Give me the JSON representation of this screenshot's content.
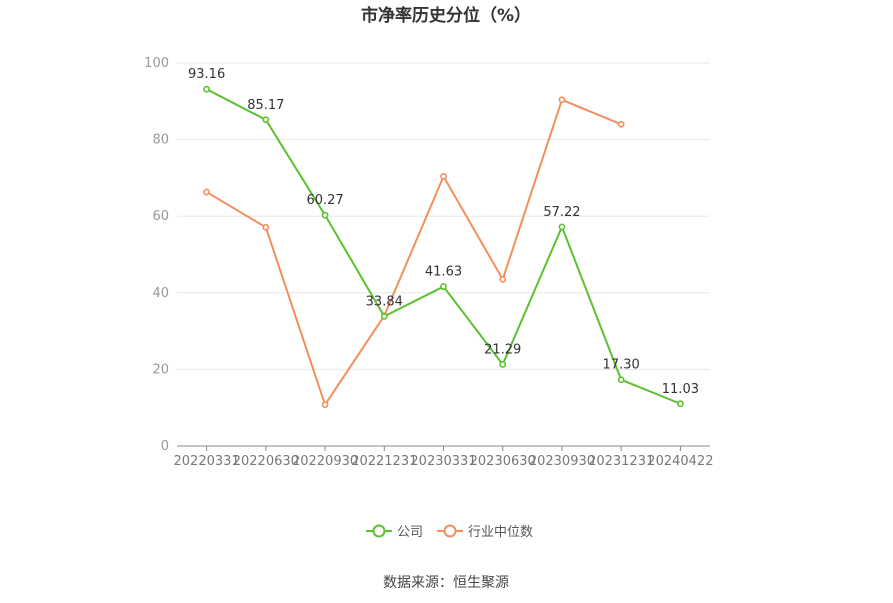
{
  "chart_data": {
    "type": "line",
    "title": "市净率历史分位（%）",
    "categories": [
      "20220331",
      "20220630",
      "20220930",
      "20221231",
      "20230331",
      "20230630",
      "20230930",
      "20231231",
      "20240422"
    ],
    "ylim": [
      0,
      100
    ],
    "yticks": [
      0,
      20,
      40,
      60,
      80,
      100
    ],
    "grid": true,
    "legend_position": "bottom",
    "series": [
      {
        "name": "公司",
        "color": "#5cc12f",
        "values": [
          93.16,
          85.17,
          60.27,
          33.84,
          41.63,
          21.29,
          57.22,
          17.3,
          11.03
        ],
        "labels": [
          "93.16",
          "85.17",
          "60.27",
          "33.84",
          "41.63",
          "21.29",
          "57.22",
          "17.30",
          "11.03"
        ]
      },
      {
        "name": "行业中位数",
        "color": "#f28f5c",
        "values": [
          66.3,
          57.1,
          10.8,
          34.0,
          70.4,
          43.5,
          90.4,
          84.0,
          null
        ]
      }
    ]
  },
  "source_text": "数据来源：恒生聚源"
}
